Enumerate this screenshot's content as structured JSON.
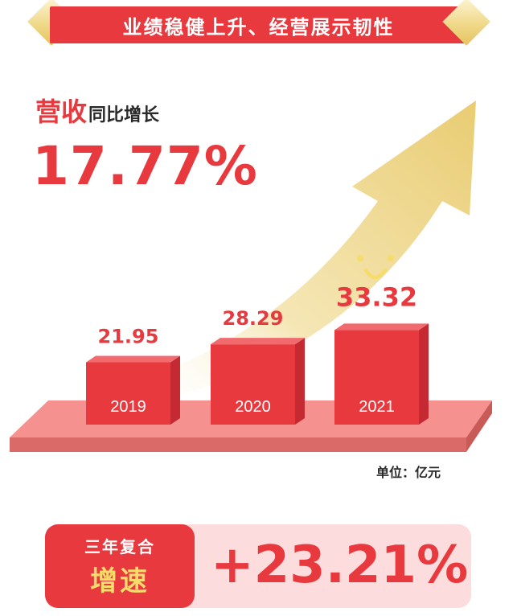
{
  "banner": {
    "title": "业绩稳健上升、经营展示韧性"
  },
  "headline": {
    "metric_name": "营收",
    "metric_sub": "同比增长",
    "growth": "17.77%"
  },
  "chart_data": {
    "type": "bar",
    "categories": [
      "2019",
      "2020",
      "2021"
    ],
    "values": [
      21.95,
      28.29,
      33.32
    ],
    "value_labels": [
      "21.95",
      "28.29",
      "33.32"
    ],
    "unit": "单位：亿元"
  },
  "cagr": {
    "tag_line1": "三年复合",
    "tag_line2": "增速",
    "value": "+23.21%"
  },
  "colors": {
    "accent": "#e8393f",
    "bar_front": "#e8393f",
    "bar_side": "#c52a32",
    "bar_top": "#f06a6e",
    "platform_top": "#f5928f",
    "platform_side": "#d96a67",
    "arrow_gold": "#efd58a",
    "card_bg": "#fcdcdc",
    "tag_yellow": "#f6dc6a"
  }
}
